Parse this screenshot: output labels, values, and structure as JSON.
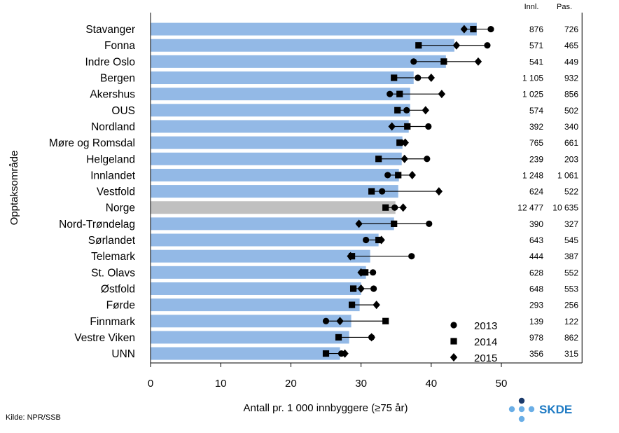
{
  "chart_data": {
    "type": "bar",
    "title": "",
    "ylabel": "Opptaksområde",
    "xlabel": "Antall pr. 1 000 innbyggere (≥75 år)",
    "xlim": [
      0,
      61.5
    ],
    "xticks": [
      0,
      10,
      20,
      30,
      40,
      50
    ],
    "categories": [
      "Stavanger",
      "Fonna",
      "Indre Oslo",
      "Bergen",
      "Akershus",
      "OUS",
      "Nordland",
      "Møre og Romsdal",
      "Helgeland",
      "Innlandet",
      "Vestfold",
      "Norge",
      "Nord-Trøndelag",
      "Sørlandet",
      "Telemark",
      "St. Olavs",
      "Østfold",
      "Førde",
      "Finnmark",
      "Vestre Viken",
      "UNN"
    ],
    "bar_values": [
      46.5,
      43.3,
      42.1,
      37.5,
      37.0,
      37.0,
      36.8,
      35.9,
      35.8,
      35.4,
      35.3,
      34.9,
      34.7,
      32.5,
      31.3,
      30.7,
      30.0,
      29.8,
      28.6,
      28.3,
      27.0
    ],
    "highlight_category": "Norge",
    "colors": {
      "bar": "#93b9e6",
      "highlight_bar": "#c0c0c0",
      "marker": "#000000"
    },
    "series": [
      {
        "name": "2013",
        "marker": "circle",
        "values": [
          48.5,
          48.0,
          37.5,
          38.1,
          34.1,
          36.5,
          39.6,
          35.7,
          39.4,
          33.8,
          33.0,
          34.8,
          39.7,
          30.7,
          37.2,
          31.7,
          31.8,
          28.7,
          25.0,
          31.5,
          27.2
        ]
      },
      {
        "name": "2014",
        "marker": "square",
        "values": [
          46.0,
          38.2,
          41.8,
          34.7,
          35.5,
          35.2,
          36.6,
          35.5,
          32.5,
          35.3,
          31.5,
          33.5,
          34.7,
          32.5,
          28.7,
          30.6,
          28.9,
          28.7,
          33.5,
          26.8,
          25.0
        ]
      },
      {
        "name": "2015",
        "marker": "diamond",
        "values": [
          44.7,
          43.6,
          46.7,
          40.0,
          41.5,
          39.2,
          34.4,
          36.3,
          36.2,
          37.3,
          41.1,
          36.0,
          29.7,
          32.9,
          28.5,
          30.0,
          30.0,
          32.2,
          27.0,
          31.5,
          27.7
        ]
      }
    ],
    "table_headers": [
      "Innl.",
      "Pas."
    ],
    "table_innl": [
      "876",
      "571",
      "541",
      "1 105",
      "1 025",
      "574",
      "392",
      "765",
      "239",
      "1 248",
      "624",
      "12 477",
      "390",
      "643",
      "444",
      "628",
      "648",
      "293",
      "139",
      "978",
      "356"
    ],
    "table_pas": [
      "726",
      "465",
      "449",
      "932",
      "856",
      "502",
      "340",
      "661",
      "203",
      "1 061",
      "522",
      "10 635",
      "327",
      "545",
      "387",
      "552",
      "553",
      "256",
      "122",
      "862",
      "315"
    ]
  },
  "source": "Kilde: NPR/SSB",
  "logo": {
    "text": "SKDE",
    "color": "#1f7bc4",
    "dark_color": "#1b3a6b",
    "light_color": "#6aaee6"
  }
}
